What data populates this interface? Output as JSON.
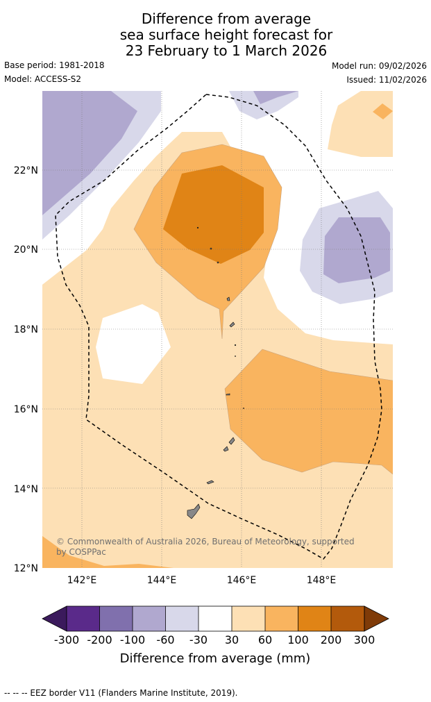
{
  "title": {
    "line1": "Difference from average",
    "line2": "sea surface height forecast for",
    "line3": "23 February to 1 March 2026"
  },
  "meta": {
    "base_period": "Base period: 1981-2018",
    "model": "Model: ACCESS-S2",
    "model_run": "Model run: 09/02/2026",
    "issued": "Issued: 11/02/2026"
  },
  "axes": {
    "lat_labels": [
      "22°N",
      "20°N",
      "18°N",
      "16°N",
      "14°N",
      "12°N"
    ],
    "lon_labels": [
      "142°E",
      "144°E",
      "146°E",
      "148°E"
    ]
  },
  "map": {
    "copyright_line1": "© Commonwealth of Australia 2026, Bureau of Meteorology, supported",
    "copyright_line2": "by COSPPac"
  },
  "colorbar": {
    "ticks": [
      "-300",
      "-200",
      "-100",
      "-60",
      "-30",
      "30",
      "60",
      "100",
      "200",
      "300"
    ],
    "title": "Difference from average (mm)",
    "colors": [
      "#3b1a5c",
      "#5a2a8a",
      "#8070ad",
      "#b0a8cf",
      "#d8d8ea",
      "#ffffff",
      "#fde0b5",
      "#f9b45f",
      "#e08416",
      "#b35a0c",
      "#7f3b08"
    ]
  },
  "footnote": "--  --  -- EEZ border V11 (Flanders Marine Institute, 2019)."
}
